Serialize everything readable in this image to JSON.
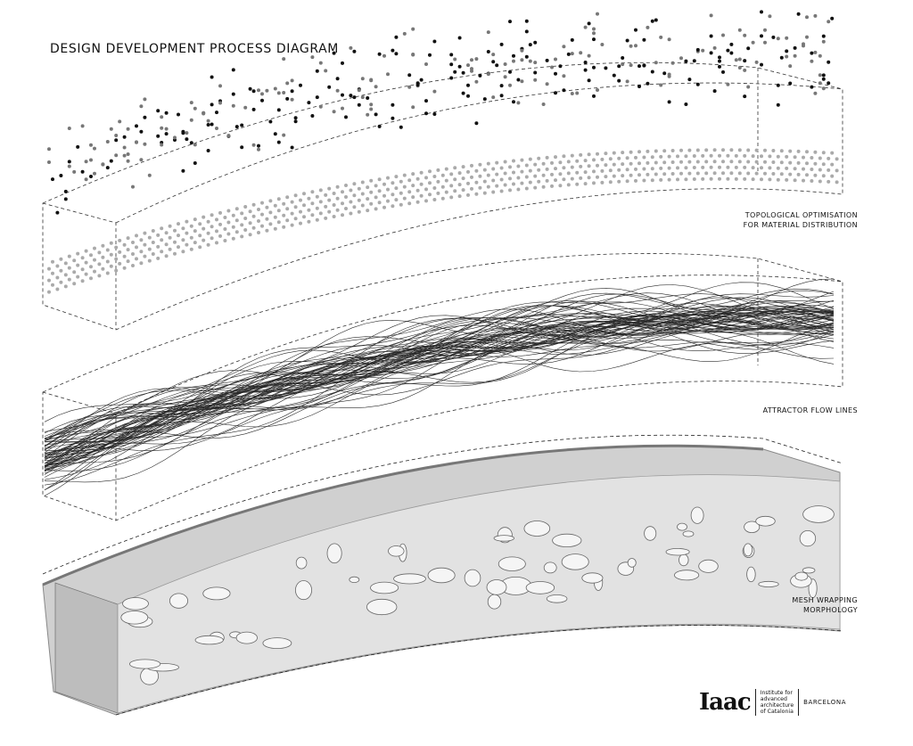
{
  "title": "DESIGN DEVELOPMENT PROCESS DIAGRAM",
  "stages": [
    {
      "id": "topology",
      "label_lines": [
        "TOPOLOGICAL OPTIMISATION",
        "FOR MATERIAL DISTRIBUTION"
      ]
    },
    {
      "id": "flow",
      "label_lines": [
        "ATTRACTOR FLOW LINES"
      ]
    },
    {
      "id": "mesh",
      "label_lines": [
        "MESH WRAPPING",
        "MORPHOLOGY"
      ]
    }
  ],
  "logo": {
    "mark": "Iaac",
    "institute_lines": [
      "Institute for",
      "advanced",
      "architecture",
      "of Catalonia"
    ],
    "city": "BARCELONA"
  },
  "colors": {
    "dot_dark": "#111111",
    "dot_mid": "#777777",
    "dot_light": "#aaaaaa",
    "line": "#333333",
    "mesh": "#d6d6d6"
  }
}
